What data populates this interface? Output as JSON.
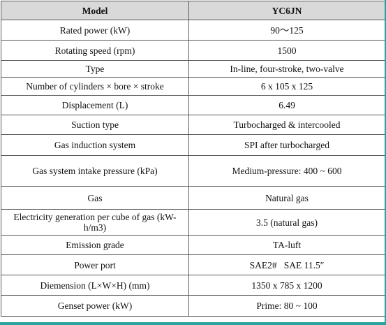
{
  "table": {
    "header": [
      "Model",
      "YC6JN"
    ],
    "rows": [
      [
        "Rated power (kW)",
        "90～125"
      ],
      [
        "Rotating speed (rpm)",
        "1500"
      ],
      [
        "Type",
        "In-line, four-stroke, two-valve"
      ],
      [
        "Number of cylinders × bore × stroke",
        "6 x 105 x 125"
      ],
      [
        "Displacement (L)",
        "6.49"
      ],
      [
        "Suction type",
        "Turbocharged & intercooled"
      ],
      [
        "Gas induction system",
        "SPI after turbocharged"
      ],
      [
        "Gas system intake pressure (kPa)",
        "Medium-pressure: 400 ~ 600"
      ],
      [
        "Gas",
        "Natural gas"
      ],
      [
        "Electricity generation per cube of gas (kW-h/m3)",
        "3.5 (natural gas)"
      ],
      [
        "Emission grade",
        "TA-luft"
      ],
      [
        "Power port",
        "SAE2#   SAE 11.5″"
      ],
      [
        "Diemension (L×W×H) (mm)",
        "1350 x 785 x 1200"
      ],
      [
        "Genset power (kW)",
        "Prime: 80 ~ 100"
      ]
    ]
  },
  "colors": {
    "header_bg": "#d9d9d9",
    "border": "#5a5a5a",
    "accent_bar": "#2aa3a0"
  }
}
